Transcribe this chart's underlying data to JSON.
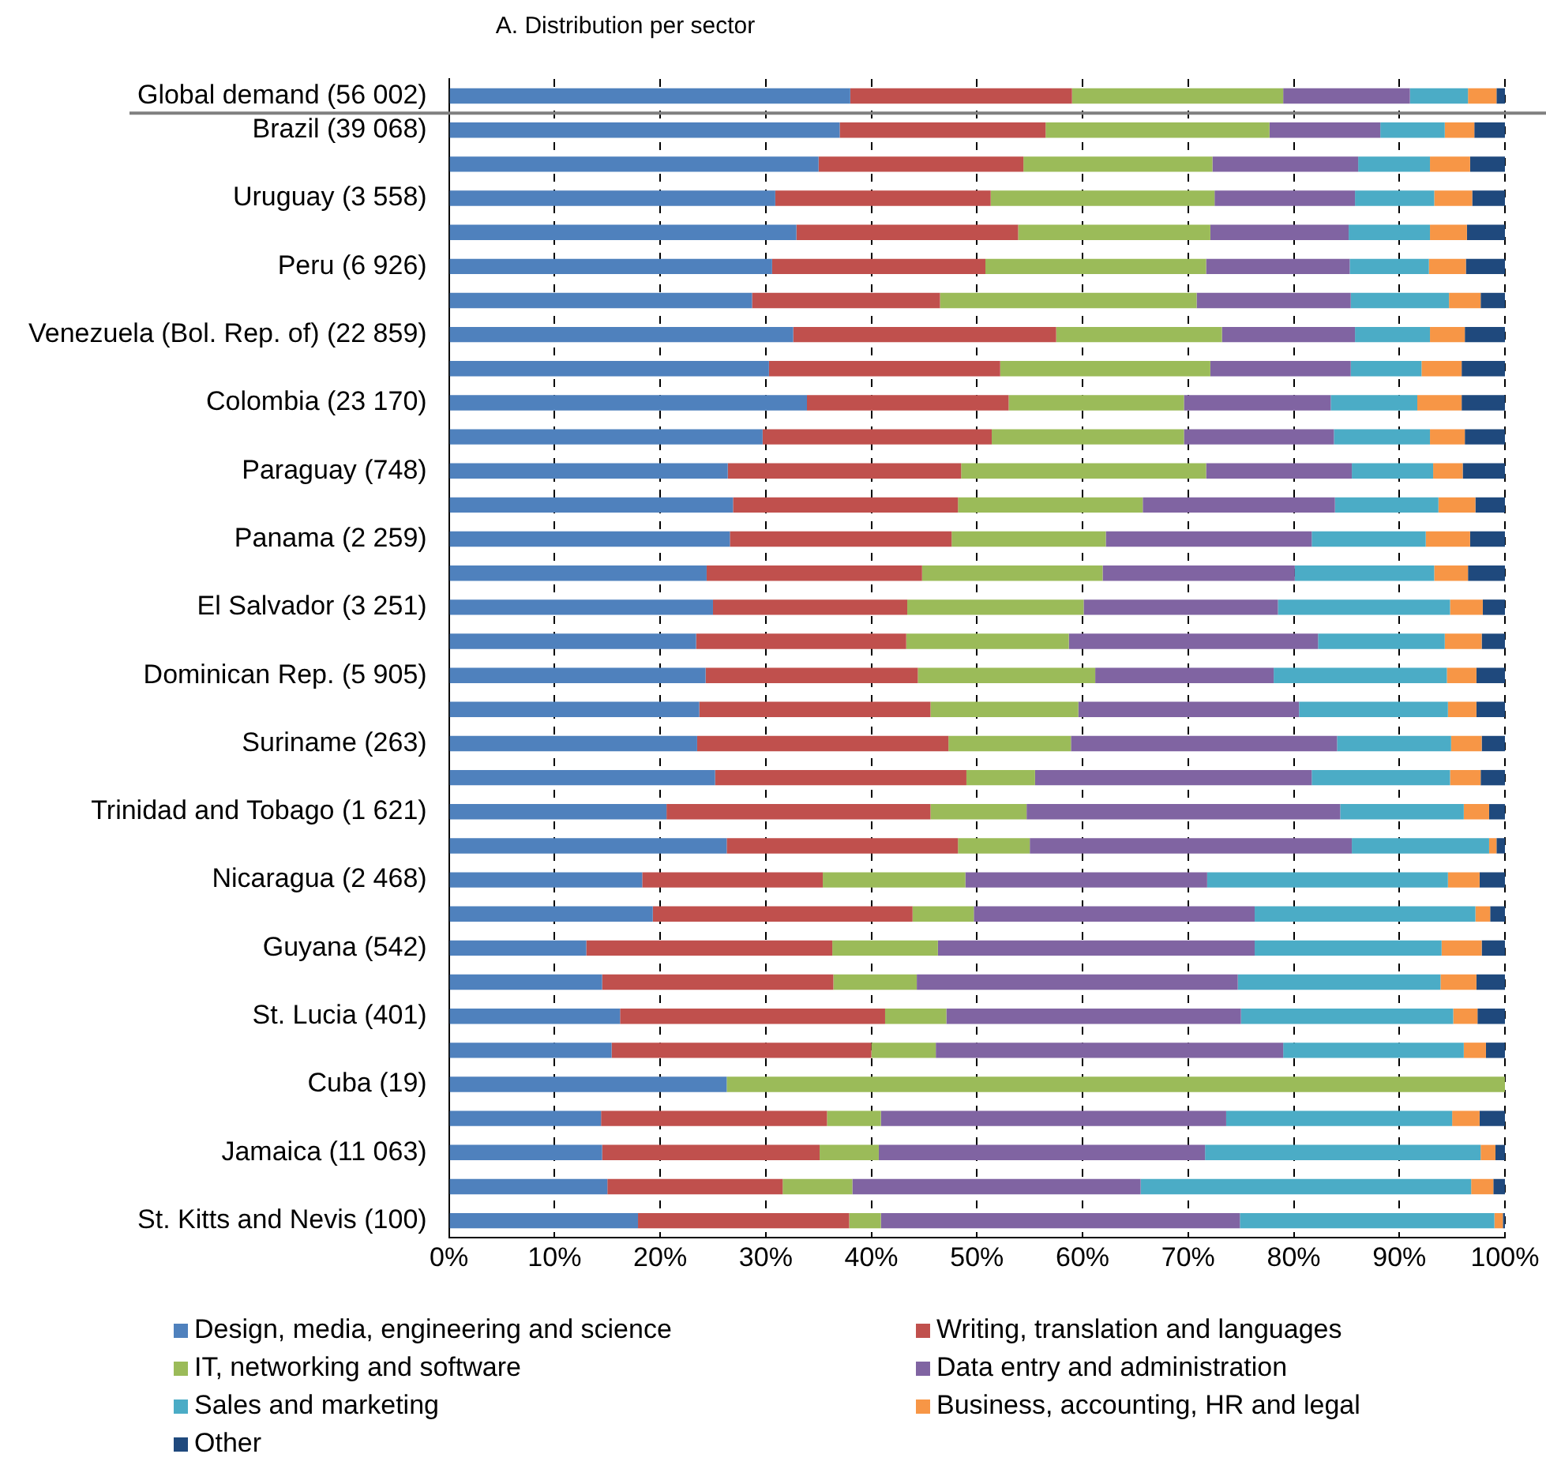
{
  "chart_data": {
    "type": "bar",
    "orientation": "horizontal",
    "stacked": true,
    "title": "A. Distribution per sector",
    "categories": [
      "Global demand (56 002)",
      "Brazil (39 068)",
      null,
      "Uruguay (3 558)",
      null,
      "Peru (6 926)",
      null,
      "Venezuela (Bol. Rep. of) (22 859)",
      null,
      "Colombia (23 170)",
      null,
      "Paraguay (748)",
      null,
      "Panama (2 259)",
      null,
      "El Salvador (3 251)",
      null,
      "Dominican Rep. (5 905)",
      null,
      "Suriname (263)",
      null,
      "Trinidad and Tobago (1 621)",
      null,
      "Nicaragua (2 468)",
      null,
      "Guyana (542)",
      null,
      "St. Lucia (401)",
      null,
      "Cuba (19)",
      null,
      "Jamaica (11 063)",
      null,
      "St. Kitts and Nevis (100)"
    ],
    "series": [
      {
        "name": "Design, media, engineering and science",
        "color": "#4f81bd",
        "values": [
          38,
          37,
          35,
          30.9,
          32.9,
          30.6,
          28.7,
          32.6,
          30.3,
          33.9,
          29.7,
          26.4,
          26.9,
          26.6,
          24.4,
          25,
          23.4,
          24.3,
          23.7,
          23.5,
          25.2,
          20.6,
          26.3,
          18.3,
          19.3,
          13,
          14.5,
          16.2,
          15.4,
          26.3,
          14.4,
          14.5,
          15,
          17.9
        ]
      },
      {
        "name": "Writing, translation and languages",
        "color": "#c0504d",
        "values": [
          21,
          19.5,
          19.4,
          20.4,
          21,
          20.2,
          17.8,
          24.9,
          21.9,
          19.1,
          21.7,
          22.1,
          21.3,
          21,
          20.4,
          18.4,
          19.9,
          20.1,
          21.9,
          23.8,
          23.8,
          25,
          21.9,
          17.1,
          24.6,
          23.3,
          21.9,
          25.1,
          24.6,
          0,
          21.4,
          20.6,
          16.6,
          20
        ]
      },
      {
        "name": "IT, networking and software",
        "color": "#9bbb59",
        "values": [
          20,
          21.2,
          17.9,
          21.2,
          18.2,
          20.9,
          24.3,
          15.7,
          19.9,
          16.6,
          18.2,
          23.2,
          17.5,
          14.6,
          17.1,
          16.7,
          15.4,
          16.8,
          14,
          11.6,
          6.5,
          9.1,
          6.8,
          13.5,
          5.8,
          10,
          7.9,
          5.8,
          6.1,
          73.7,
          5.1,
          5.6,
          6.6,
          3
        ]
      },
      {
        "name": "Data entry and administration",
        "color": "#8064a2",
        "values": [
          12,
          10.5,
          13.8,
          13.3,
          13.1,
          13.6,
          14.6,
          12.6,
          13.3,
          13.9,
          14.2,
          13.8,
          18.2,
          19.5,
          18.2,
          18.4,
          23.6,
          16.9,
          20.9,
          25.2,
          26.2,
          29.7,
          30.5,
          22.9,
          26.6,
          30,
          30.4,
          27.9,
          32.9,
          0,
          32.7,
          30.9,
          27.3,
          34
        ]
      },
      {
        "name": "Sales and marketing",
        "color": "#4bacc6",
        "values": [
          5.5,
          6.1,
          6.8,
          7.5,
          7.7,
          7.5,
          9.3,
          7.1,
          6.7,
          8.2,
          9.1,
          7.7,
          9.8,
          10.8,
          13.2,
          16.3,
          12,
          16.4,
          14.1,
          10.8,
          13.1,
          11.7,
          13,
          22.8,
          20.9,
          17.7,
          19.2,
          20.1,
          17.1,
          0,
          21.4,
          26.1,
          31.3,
          24.1
        ]
      },
      {
        "name": "Business, accounting, HR and legal",
        "color": "#f79646",
        "values": [
          2.7,
          2.8,
          3.8,
          3.6,
          3.5,
          3.5,
          3,
          3.3,
          3.8,
          4.2,
          3.3,
          2.8,
          3.5,
          4.2,
          3.2,
          3.1,
          3.5,
          2.8,
          2.7,
          2.9,
          2.9,
          2.4,
          0.7,
          3,
          1.4,
          3.8,
          3.4,
          2.3,
          2.1,
          0,
          2.6,
          1.4,
          2.1,
          0.8
        ]
      },
      {
        "name": "Other",
        "color": "#1f497d",
        "values": [
          0.8,
          2.9,
          3.3,
          3.1,
          3.6,
          3.7,
          2.3,
          3.8,
          4.1,
          4.1,
          3.8,
          4,
          2.8,
          3.3,
          3.5,
          2.1,
          2.2,
          2.7,
          2.7,
          2.2,
          2.3,
          1.5,
          0.8,
          2.4,
          1.4,
          2.2,
          2.7,
          2.6,
          1.8,
          0,
          2.4,
          0.9,
          1.1,
          0.2
        ]
      }
    ],
    "xlim": [
      0,
      100
    ],
    "xticks": [
      {
        "value": 0,
        "label": "0%"
      },
      {
        "value": 10,
        "label": "10%"
      },
      {
        "value": 20,
        "label": "20%"
      },
      {
        "value": 30,
        "label": "30%"
      },
      {
        "value": 40,
        "label": "40%"
      },
      {
        "value": 50,
        "label": "50%"
      },
      {
        "value": 60,
        "label": "60%"
      },
      {
        "value": 70,
        "label": "70%"
      },
      {
        "value": 80,
        "label": "80%"
      },
      {
        "value": 90,
        "label": "90%"
      },
      {
        "value": 100,
        "label": "100%"
      }
    ],
    "ref_lines": [
      {
        "axis": "y",
        "value": "Global demand (56 002)",
        "color": "#808080"
      }
    ],
    "grid": "x",
    "legend": "bottom"
  }
}
